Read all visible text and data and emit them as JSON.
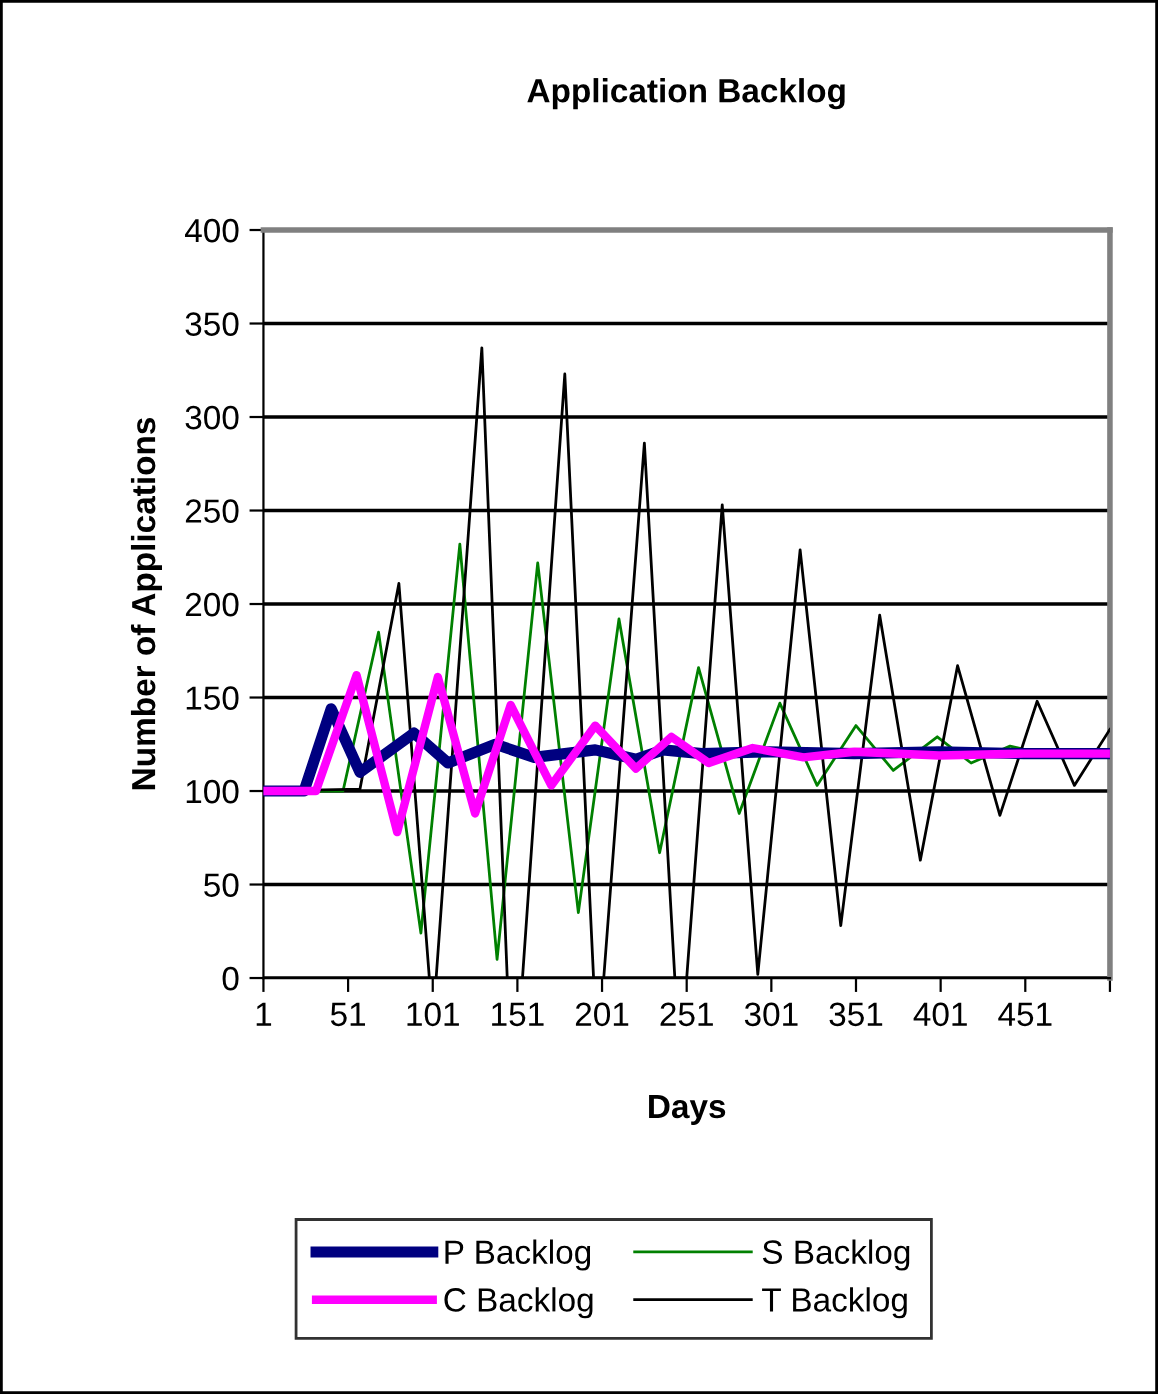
{
  "chart_data": {
    "type": "line",
    "title": "Application Backlog",
    "xlabel": "Days",
    "ylabel": "Number of Applications",
    "xlim": [
      1,
      501
    ],
    "xticks": [
      1,
      51,
      101,
      151,
      201,
      251,
      301,
      351,
      401,
      451,
      {
        "value": 501,
        "label": null
      }
    ],
    "ylim": [
      0,
      400
    ],
    "yticks": [
      0,
      50,
      100,
      150,
      200,
      250,
      300,
      350,
      400
    ],
    "grid": "y",
    "legend": "bottom",
    "marker": "none",
    "line_style": "solid",
    "series": [
      {
        "name": "P Backlog",
        "color": "#000080",
        "x": [
          1,
          25,
          41,
          58,
          90,
          110,
          138,
          161,
          197,
          221,
          237,
          260,
          300,
          350,
          400,
          450,
          501
        ],
        "values": [
          100,
          100,
          144,
          110,
          131,
          115,
          125,
          118,
          122,
          117,
          122,
          120,
          121,
          120,
          121,
          120,
          120
        ]
      },
      {
        "name": "C Backlog",
        "color": "#ff00ff",
        "x": [
          1,
          32,
          56,
          80,
          104,
          126,
          147,
          171,
          197,
          221,
          242,
          264,
          290,
          320,
          350,
          400,
          450,
          501
        ],
        "values": [
          100,
          100,
          162,
          78,
          161,
          88,
          146,
          103,
          135,
          112,
          129,
          115,
          123,
          118,
          121,
          119,
          120,
          120
        ]
      },
      {
        "name": "S Backlog",
        "color": "#008000",
        "x": [
          1,
          48,
          69,
          94,
          117,
          139,
          163,
          187,
          211,
          235,
          258,
          282,
          306,
          328,
          351,
          373,
          399,
          419,
          442,
          470
        ],
        "values": [
          100,
          100,
          185,
          24,
          232,
          10,
          222,
          35,
          192,
          67,
          166,
          88,
          147,
          103,
          135,
          111,
          129,
          115,
          124,
          118
        ]
      },
      {
        "name": "T Backlog",
        "color": "#000000",
        "x": [
          1,
          58,
          81,
          99,
          103,
          130,
          145,
          154,
          179,
          196,
          202,
          226,
          244,
          251,
          272,
          293,
          318,
          342,
          365,
          389,
          411,
          436,
          458,
          480,
          501
        ],
        "values": [
          100,
          101,
          211,
          0,
          0,
          337,
          0,
          0,
          323,
          0,
          0,
          286,
          0,
          0,
          253,
          2,
          229,
          28,
          194,
          63,
          167,
          87,
          148,
          103,
          133
        ]
      }
    ]
  }
}
